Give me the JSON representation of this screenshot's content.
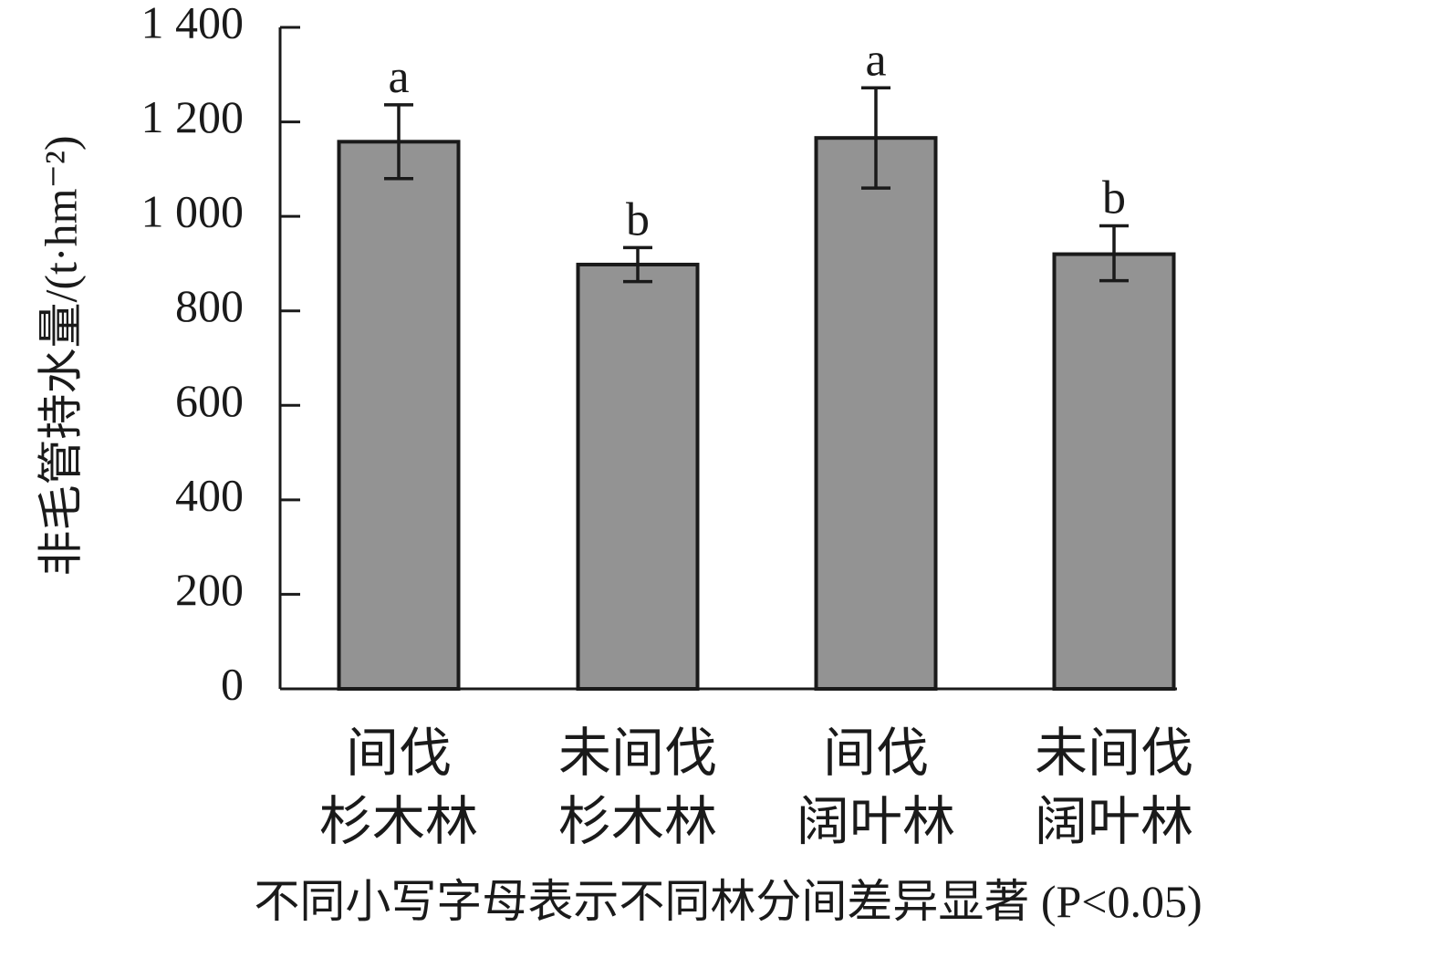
{
  "chart_data": {
    "type": "bar",
    "ylabel": "非毛管持水量/(t·hm⁻²)",
    "ylim": [
      0,
      1400
    ],
    "yticks": [
      {
        "value": 0,
        "label": "0"
      },
      {
        "value": 200,
        "label": "200"
      },
      {
        "value": 400,
        "label": "400"
      },
      {
        "value": 600,
        "label": "600"
      },
      {
        "value": 800,
        "label": "800"
      },
      {
        "value": 1000,
        "label": "1 000"
      },
      {
        "value": 1200,
        "label": "1 200"
      },
      {
        "value": 1400,
        "label": "1 400"
      }
    ],
    "categories": [
      {
        "line1": "间伐",
        "line2": "杉木林"
      },
      {
        "line1": "未间伐",
        "line2": "杉木林"
      },
      {
        "line1": "间伐",
        "line2": "阔叶林"
      },
      {
        "line1": "未间伐",
        "line2": "阔叶林"
      }
    ],
    "values": [
      1158,
      898,
      1166,
      920
    ],
    "error_low": [
      1080,
      862,
      1060,
      864
    ],
    "error_high": [
      1236,
      934,
      1272,
      980
    ],
    "significance": [
      "a",
      "b",
      "a",
      "b"
    ],
    "bar_color": "#939393",
    "grid": false,
    "note": "不同小写字母表示不同林分间差异显著 (P<0.05)"
  }
}
